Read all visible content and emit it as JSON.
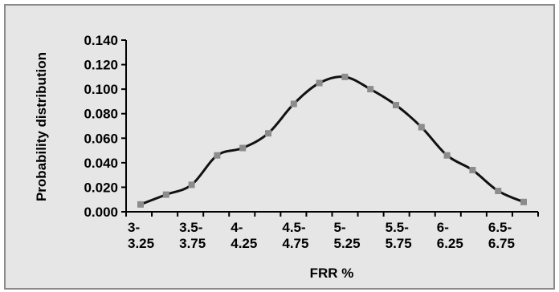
{
  "chart_data": {
    "type": "line",
    "title": "",
    "xlabel": "FRR %",
    "ylabel": "Probability distribution",
    "ylim": [
      0,
      0.14
    ],
    "yticks": [
      "0.000",
      "0.020",
      "0.040",
      "0.060",
      "0.080",
      "0.100",
      "0.120",
      "0.140"
    ],
    "xtick_labels": [
      [
        "3-",
        "3.25"
      ],
      [
        "3.5-",
        "3.75"
      ],
      [
        "4-",
        "4.25"
      ],
      [
        "4.5-",
        "4.75"
      ],
      [
        "5-",
        "5.25"
      ],
      [
        "5.5-",
        "5.75"
      ],
      [
        "6-",
        "6.25"
      ],
      [
        "6.5-",
        "6.75"
      ]
    ],
    "categories": [
      "3-3.25",
      "3.25-3.5",
      "3.5-3.75",
      "3.75-4",
      "4-4.25",
      "4.25-4.5",
      "4.5-4.75",
      "4.75-5",
      "5-5.25",
      "5.25-5.5",
      "5.5-5.75",
      "5.75-6",
      "6-6.25",
      "6.25-6.5",
      "6.5-6.75",
      "6.75-7"
    ],
    "series": [
      {
        "values": [
          0.006,
          0.014,
          0.022,
          0.046,
          0.052,
          0.064,
          0.088,
          0.105,
          0.11,
          0.1,
          0.087,
          0.069,
          0.046,
          0.034,
          0.017,
          0.008
        ]
      }
    ],
    "grid": false,
    "legend": "none",
    "colors": {
      "line": "#111111",
      "marker": "#8c8c8c",
      "background": "#e6e6e6",
      "frame": "#8a8a8a"
    }
  }
}
